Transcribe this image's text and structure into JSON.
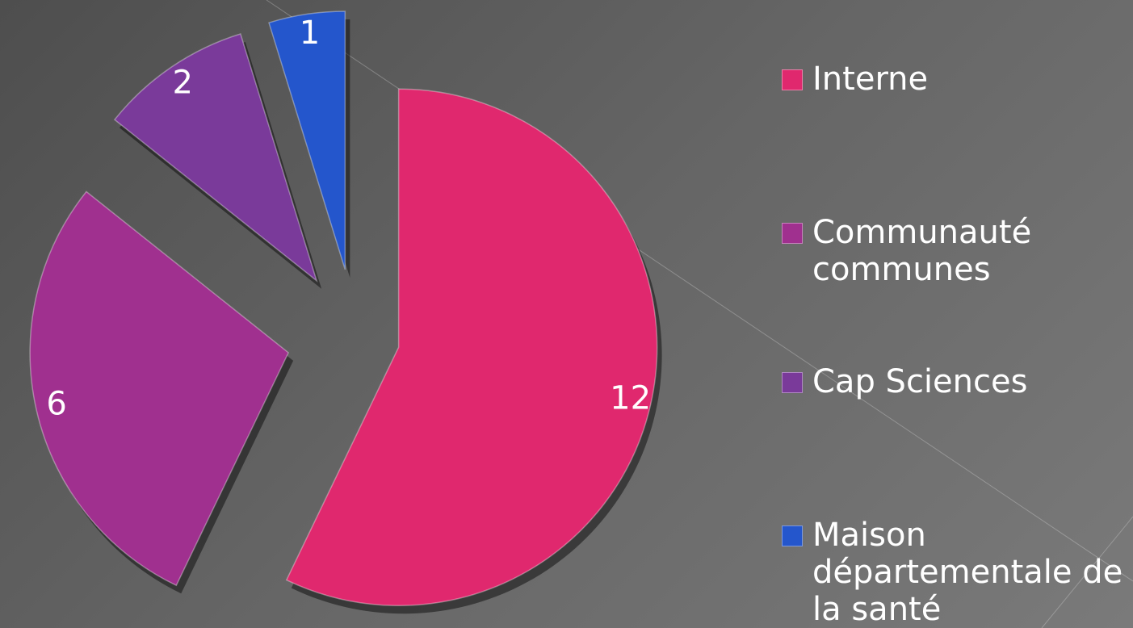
{
  "chart_data": {
    "type": "pie",
    "categories": [
      "Interne",
      "Communauté communes",
      "Cap Sciences",
      "Maison départementale de la santé"
    ],
    "values": [
      12,
      6,
      2,
      1
    ],
    "colors": [
      "#e0286e",
      "#a0308f",
      "#7a3a9a",
      "#2456cc"
    ],
    "legend": "right"
  }
}
